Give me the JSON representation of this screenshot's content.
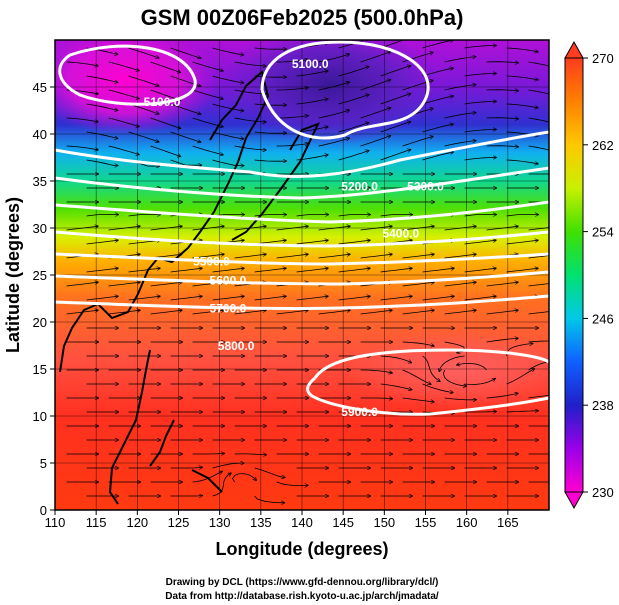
{
  "chart_data": {
    "type": "heatmap",
    "title": "GSM 00Z06Feb2025 (500.0hPa)",
    "xlabel": "Longitude (degrees)",
    "ylabel": "Latitude  (degrees)",
    "xlim": [
      110,
      170
    ],
    "ylim": [
      0,
      50
    ],
    "x_ticks": [
      "110",
      "115",
      "120",
      "125",
      "130",
      "135",
      "140",
      "145",
      "150",
      "155",
      "160",
      "165"
    ],
    "y_ticks": [
      "0",
      "5",
      "10",
      "15",
      "20",
      "25",
      "30",
      "35",
      "40",
      "45"
    ],
    "colorbar": {
      "range": [
        230,
        270
      ],
      "ticks": [
        "230",
        "238",
        "246",
        "254",
        "262",
        "270"
      ],
      "colors": [
        "#ff00d0",
        "#9a00e8",
        "#2020c8",
        "#1060ff",
        "#00c8e8",
        "#00e070",
        "#40e000",
        "#c8f000",
        "#ffc800",
        "#ff8000",
        "#ff3c1e"
      ]
    },
    "contours": [
      {
        "label": "5100.0",
        "lon": 123,
        "lat": 43
      },
      {
        "label": "5100.0",
        "lon": 141,
        "lat": 47
      },
      {
        "label": "5200.0",
        "lon": 147,
        "lat": 34
      },
      {
        "label": "5300.0",
        "lon": 155,
        "lat": 34
      },
      {
        "label": "5400.0",
        "lon": 152,
        "lat": 29
      },
      {
        "label": "5500.0",
        "lon": 129,
        "lat": 26
      },
      {
        "label": "5600.0",
        "lon": 131,
        "lat": 24
      },
      {
        "label": "5700.0",
        "lon": 131,
        "lat": 21
      },
      {
        "label": "5800.0",
        "lon": 132,
        "lat": 17
      },
      {
        "label": "5900.0",
        "lon": 147,
        "lat": 10
      }
    ]
  },
  "credits": {
    "line1": "Drawing by DCL (https://www.gfd-dennou.org/library/dcl/)",
    "line2": "Data from http://database.rish.kyoto-u.ac.jp/arch/jmadata/"
  }
}
